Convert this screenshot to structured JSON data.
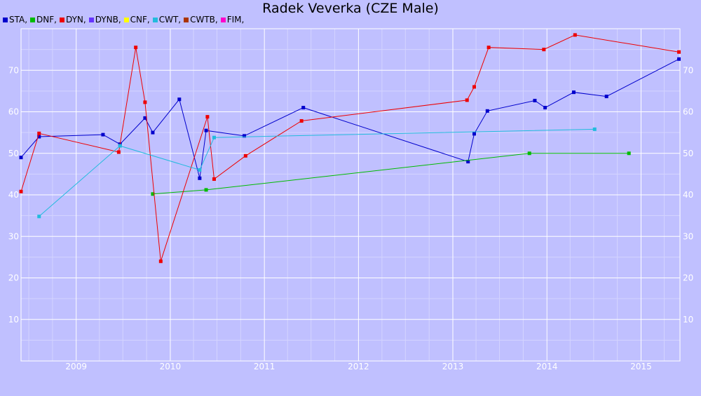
{
  "chart_data": {
    "type": "line",
    "title": "Radek Veverka (CZE Male)",
    "xlabel": "",
    "ylabel": "",
    "x_range": [
      "2008-06-01",
      "2015-06-01"
    ],
    "y_range": [
      0,
      80
    ],
    "x_ticks": [
      "2009",
      "2010",
      "2011",
      "2012",
      "2013",
      "2014",
      "2015"
    ],
    "y_ticks": [
      "10",
      "20",
      "30",
      "40",
      "50",
      "60",
      "70"
    ],
    "grid": true,
    "legend_position": "top-left",
    "legend": [
      {
        "label": "STA,",
        "color": "#0000cc"
      },
      {
        "label": "DNF,",
        "color": "#00bb00"
      },
      {
        "label": "DYN,",
        "color": "#ee0000"
      },
      {
        "label": "DYNB,",
        "color": "#6633ff"
      },
      {
        "label": "CNF,",
        "color": "#ffff00"
      },
      {
        "label": "CWT,",
        "color": "#22bbdd"
      },
      {
        "label": "CWTB,",
        "color": "#aa3300"
      },
      {
        "label": "FIM,",
        "color": "#ff00cc"
      }
    ],
    "series": [
      {
        "name": "STA",
        "color": "#0000cc",
        "points": [
          [
            "2008-06-01",
            49
          ],
          [
            "2008-08-10",
            54
          ],
          [
            "2009-04-15",
            54.5
          ],
          [
            "2009-06-20",
            52.2
          ],
          [
            "2009-09-25",
            58.5
          ],
          [
            "2009-10-25",
            55
          ],
          [
            "2010-02-05",
            63
          ],
          [
            "2010-04-25",
            44
          ],
          [
            "2010-05-20",
            55.5
          ],
          [
            "2010-10-15",
            54.2
          ],
          [
            "2011-06-01",
            61
          ],
          [
            "2013-03-01",
            48
          ],
          [
            "2013-03-25",
            54.7
          ],
          [
            "2013-05-15",
            60.2
          ],
          [
            "2013-11-15",
            62.7
          ],
          [
            "2013-12-25",
            61
          ],
          [
            "2014-04-15",
            64.7
          ],
          [
            "2014-08-20",
            63.7
          ],
          [
            "2015-05-28",
            72.7
          ]
        ]
      },
      {
        "name": "DNF",
        "color": "#00bb00",
        "points": [
          [
            "2009-10-25",
            40.2
          ],
          [
            "2010-05-20",
            41.2
          ],
          [
            "2013-10-25",
            50
          ],
          [
            "2014-11-15",
            50
          ]
        ]
      },
      {
        "name": "DYN",
        "color": "#ee0000",
        "points": [
          [
            "2008-06-01",
            40.8
          ],
          [
            "2008-08-10",
            54.8
          ],
          [
            "2009-06-15",
            50.3
          ],
          [
            "2009-08-20",
            75.5
          ],
          [
            "2009-09-25",
            62.3
          ],
          [
            "2009-11-25",
            24
          ],
          [
            "2010-05-25",
            58.8
          ],
          [
            "2010-06-20",
            43.8
          ],
          [
            "2010-10-20",
            49.4
          ],
          [
            "2011-05-25",
            57.8
          ],
          [
            "2013-02-25",
            62.8
          ],
          [
            "2013-03-25",
            66
          ],
          [
            "2013-05-20",
            75.5
          ],
          [
            "2013-12-20",
            75
          ],
          [
            "2014-04-20",
            78.5
          ],
          [
            "2015-05-28",
            74.4
          ]
        ]
      },
      {
        "name": "CWT",
        "color": "#22bbdd",
        "points": [
          [
            "2008-08-10",
            34.8
          ],
          [
            "2009-06-20",
            51.8
          ],
          [
            "2010-04-25",
            46
          ],
          [
            "2010-06-20",
            53.8
          ],
          [
            "2014-07-05",
            55.8
          ]
        ]
      }
    ]
  }
}
